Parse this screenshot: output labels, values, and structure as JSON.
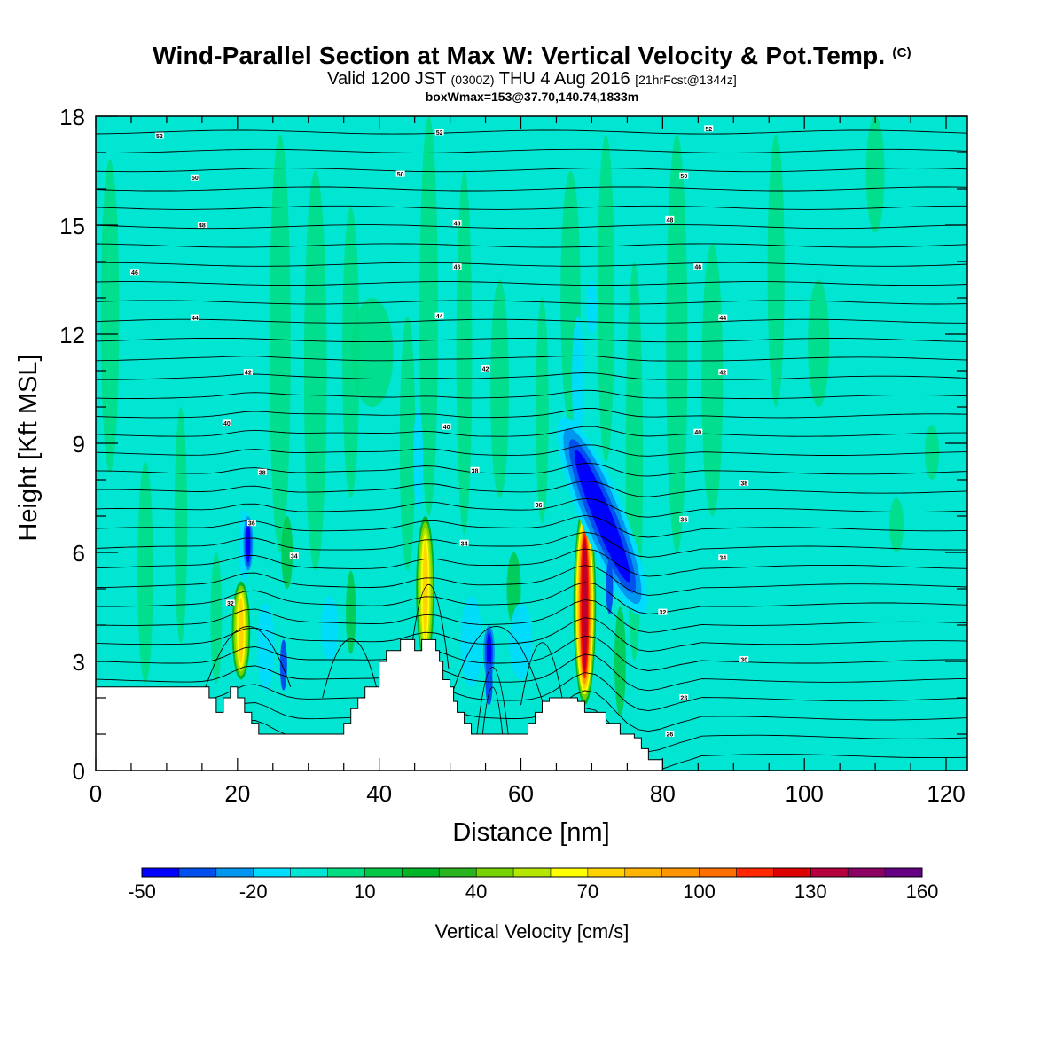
{
  "title": {
    "main": "Wind-Parallel Section at Max W: Vertical Velocity & Pot.Temp.",
    "main_suffix": "(C)",
    "valid_prefix": "Valid 1200 JST",
    "valid_utc": "(0300Z)",
    "valid_date": "THU 4 Aug 2016",
    "valid_fcst": "[21hrFcst@1344z]",
    "boxline": "boxWmax=153@37.70,140.74,1833m"
  },
  "chart_data": {
    "type": "heatmap",
    "title": "Wind-Parallel Section at Max W: Vertical Velocity & Pot.Temp. (C)",
    "xlabel": "Distance [nm]",
    "ylabel": "Height [Kft MSL]",
    "xlim": [
      0,
      123
    ],
    "ylim": [
      0,
      18
    ],
    "x_ticks": [
      "0",
      "20",
      "40",
      "60",
      "80",
      "100",
      "120"
    ],
    "y_ticks": [
      "0",
      "3",
      "6",
      "9",
      "12",
      "15",
      "18"
    ],
    "colorbar": {
      "label": "Vertical Velocity [cm/s]",
      "tick_labels": [
        "-50",
        "-20",
        "10",
        "40",
        "70",
        "100",
        "130",
        "160"
      ],
      "levels": [
        -50,
        -40,
        -30,
        -20,
        -10,
        0,
        10,
        20,
        30,
        40,
        50,
        60,
        70,
        80,
        90,
        100,
        110,
        120,
        130,
        140,
        150,
        160
      ],
      "colors": [
        "#0000ff",
        "#0050f0",
        "#0096f0",
        "#00dcff",
        "#00e6d2",
        "#00dc82",
        "#00c846",
        "#00b428",
        "#28b41e",
        "#78d200",
        "#b4e600",
        "#ffff00",
        "#ffd200",
        "#ffb400",
        "#ff9600",
        "#ff6e00",
        "#ff2800",
        "#dc0000",
        "#b4003c",
        "#8c0064",
        "#640082"
      ]
    },
    "background_value": "0 to -10",
    "updraft_cores": [
      {
        "x": 20.5,
        "z_bottom": 2.5,
        "z_top": 5.2,
        "max_w": "70-80"
      },
      {
        "x": 46.5,
        "z_bottom": 3.0,
        "z_top": 7.0,
        "max_w": "70-80"
      },
      {
        "x": 69.0,
        "z_bottom": 1.8,
        "z_top": 7.3,
        "max_w": "130-150"
      }
    ],
    "downdraft_cores": [
      {
        "x": 21.5,
        "z_bottom": 5.5,
        "z_top": 7.0,
        "min_w": "-40"
      },
      {
        "x": 55.5,
        "z_bottom": 2.5,
        "z_top": 4.0,
        "min_w": "-30"
      },
      {
        "x": 71.0,
        "z_bottom": 4.5,
        "z_top": 9.5,
        "min_w": "-50"
      }
    ],
    "terrain_profile": {
      "x": [
        0,
        14,
        16,
        17,
        18,
        19,
        20,
        21,
        22,
        23,
        24,
        28,
        29,
        30,
        31,
        31.5,
        32,
        33,
        34,
        35,
        36,
        37,
        38,
        40,
        41,
        43,
        44,
        45,
        46,
        47.5,
        48,
        48.5,
        49,
        50,
        50.5,
        51,
        52,
        53,
        60,
        61,
        62,
        63,
        64,
        65,
        67,
        68,
        69,
        71,
        72,
        74,
        75,
        76,
        77,
        78,
        79,
        80
      ],
      "z": [
        2.3,
        2.3,
        2.0,
        1.6,
        2.0,
        2.3,
        2.0,
        1.6,
        1.3,
        1.0,
        1.0,
        1.0,
        1.0,
        1.0,
        1.0,
        1.0,
        1.0,
        1.0,
        1.0,
        1.3,
        1.7,
        2.0,
        2.3,
        3.0,
        3.3,
        3.6,
        3.6,
        3.3,
        3.6,
        3.6,
        3.3,
        3.0,
        2.5,
        2.3,
        1.9,
        1.6,
        1.3,
        1.0,
        1.0,
        1.3,
        1.6,
        1.9,
        2.0,
        2.0,
        2.0,
        1.9,
        1.6,
        1.6,
        1.3,
        1.0,
        1.0,
        0.9,
        0.6,
        0.3,
        0.3,
        0.3
      ]
    },
    "theta_contour_labels": [
      {
        "x": 9,
        "z": 17.45,
        "text": "52"
      },
      {
        "x": 48.5,
        "z": 17.55,
        "text": "52"
      },
      {
        "x": 86.5,
        "z": 17.65,
        "text": "52"
      },
      {
        "x": 14,
        "z": 16.3,
        "text": "50"
      },
      {
        "x": 43,
        "z": 16.4,
        "text": "50"
      },
      {
        "x": 83,
        "z": 16.35,
        "text": "50"
      },
      {
        "x": 15,
        "z": 15.0,
        "text": "48"
      },
      {
        "x": 51,
        "z": 15.05,
        "text": "48"
      },
      {
        "x": 81,
        "z": 15.15,
        "text": "48"
      },
      {
        "x": 5.5,
        "z": 13.7,
        "text": "46"
      },
      {
        "x": 51,
        "z": 13.85,
        "text": "46"
      },
      {
        "x": 85,
        "z": 13.85,
        "text": "46"
      },
      {
        "x": 14,
        "z": 12.45,
        "text": "44"
      },
      {
        "x": 48.5,
        "z": 12.5,
        "text": "44"
      },
      {
        "x": 88.5,
        "z": 12.45,
        "text": "44"
      },
      {
        "x": 21.5,
        "z": 10.95,
        "text": "42"
      },
      {
        "x": 55,
        "z": 11.05,
        "text": "42"
      },
      {
        "x": 88.5,
        "z": 10.95,
        "text": "42"
      },
      {
        "x": 18.5,
        "z": 9.55,
        "text": "40"
      },
      {
        "x": 49.5,
        "z": 9.45,
        "text": "40"
      },
      {
        "x": 85,
        "z": 9.3,
        "text": "40"
      },
      {
        "x": 23.5,
        "z": 8.2,
        "text": "38"
      },
      {
        "x": 53.5,
        "z": 8.25,
        "text": "38"
      },
      {
        "x": 91.5,
        "z": 7.9,
        "text": "38"
      },
      {
        "x": 62.5,
        "z": 7.3,
        "text": "36"
      },
      {
        "x": 22,
        "z": 6.8,
        "text": "36"
      },
      {
        "x": 83,
        "z": 6.9,
        "text": "36"
      },
      {
        "x": 52,
        "z": 6.25,
        "text": "34"
      },
      {
        "x": 28,
        "z": 5.9,
        "text": "34"
      },
      {
        "x": 88.5,
        "z": 5.85,
        "text": "34"
      },
      {
        "x": 19,
        "z": 4.6,
        "text": "32"
      },
      {
        "x": 80,
        "z": 4.35,
        "text": "32"
      },
      {
        "x": 91.5,
        "z": 3.05,
        "text": "30"
      },
      {
        "x": 83,
        "z": 2.0,
        "text": "28"
      },
      {
        "x": 81,
        "z": 1.0,
        "text": "26"
      }
    ]
  }
}
